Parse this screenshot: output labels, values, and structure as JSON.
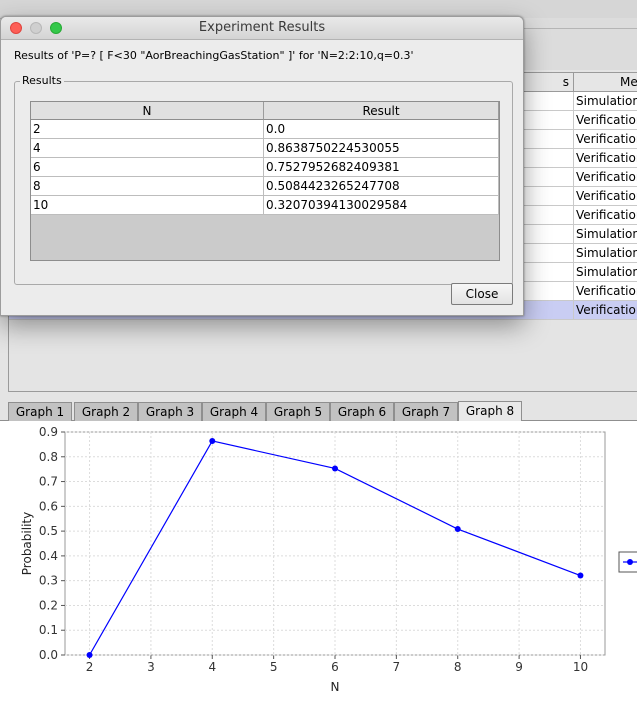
{
  "dialog": {
    "title": "Experiment Results",
    "description": "Results of 'P=? [ F<30 \"AorBreachingGasStation\" ]' for 'N=2:2:10,q=0.3'",
    "group_label": "Results",
    "columns": [
      "N",
      "Result"
    ],
    "rows": [
      [
        "2",
        "0.0"
      ],
      [
        "4",
        "0.8638750224530055"
      ],
      [
        "6",
        "0.7527952682409381"
      ],
      [
        "8",
        "0.5084423265247708"
      ],
      [
        "10",
        "0.32070394130029584"
      ]
    ],
    "close_label": "Close"
  },
  "background_table": {
    "header_partial": "s",
    "header_method_partial": "Me",
    "method_cells": [
      "Simulation",
      "Verification",
      "Verification",
      "Verification",
      "Verification",
      "Verification",
      "Verification",
      "Simulation",
      "Simulation",
      "Simulation",
      "Verification",
      "Verification"
    ],
    "selected_row_index": 11,
    "selection_color": "#c9cdf3"
  },
  "tabs": [
    "Graph 1",
    "Graph 2",
    "Graph 3",
    "Graph 4",
    "Graph 5",
    "Graph 6",
    "Graph 7",
    "Graph 8"
  ],
  "active_tab": 7,
  "chart_data": {
    "type": "line",
    "title": "",
    "xlabel": "N",
    "ylabel": "Probability",
    "xlim": [
      1.6,
      10.4
    ],
    "ylim": [
      0.0,
      0.9
    ],
    "x_ticks": [
      2,
      3,
      4,
      5,
      6,
      7,
      8,
      9,
      10
    ],
    "y_ticks": [
      0.0,
      0.1,
      0.2,
      0.3,
      0.4,
      0.5,
      0.6,
      0.7,
      0.8,
      0.9
    ],
    "y_tick_labels": [
      "0.0",
      "0.1",
      "0.2",
      "0.3",
      "0.4",
      "0.5",
      "0.6",
      "0.7",
      "0.8",
      "0.9"
    ],
    "grid": true,
    "legend_position": "right",
    "series": [
      {
        "color": "#0000ff",
        "x": [
          2,
          4,
          6,
          8,
          10
        ],
        "y": [
          0.0,
          0.8638750224530055,
          0.7527952682409381,
          0.5084423265247708,
          0.32070394130029584
        ]
      }
    ]
  },
  "colors": {
    "close_light": "#fd5f57",
    "min_light": "#cfcfcf",
    "max_light": "#34c84a",
    "series": "#0000ff"
  }
}
